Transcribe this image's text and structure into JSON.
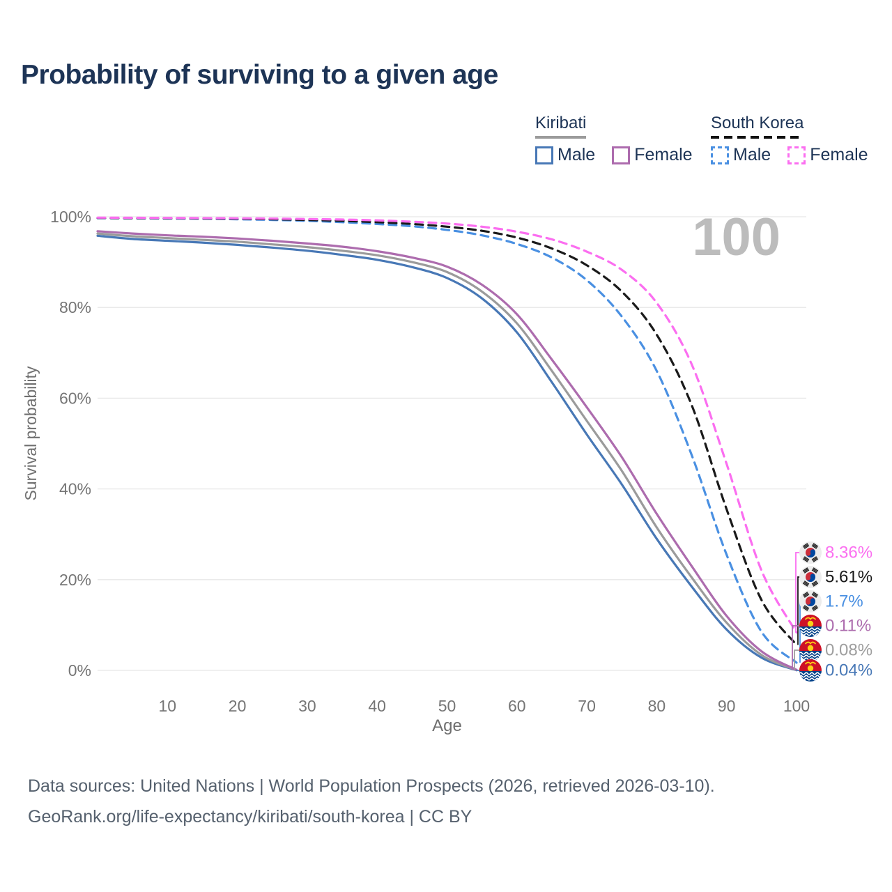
{
  "page": {
    "title": "Probability of surviving to a given age",
    "watermark": "100"
  },
  "legend": {
    "groups": [
      {
        "id": "kiribati",
        "title": "Kiribati",
        "line_style": "solid",
        "line_color": "#9b9b9b",
        "items": [
          {
            "id": "kiribati-male",
            "label": "Male",
            "color": "#4878b6",
            "dashed": false
          },
          {
            "id": "kiribati-female",
            "label": "Female",
            "color": "#ad6cae",
            "dashed": false
          }
        ]
      },
      {
        "id": "south-korea",
        "title": "South Korea",
        "line_style": "dashed",
        "line_color": "#1a1a1a",
        "items": [
          {
            "id": "south-korea-male",
            "label": "Male",
            "color": "#4a90e2",
            "dashed": true
          },
          {
            "id": "south-korea-female",
            "label": "Female",
            "color": "#fb6ef0",
            "dashed": true
          }
        ]
      }
    ]
  },
  "chart_data": {
    "type": "line",
    "title": "Probability of surviving to a given age",
    "xlabel": "Age",
    "ylabel": "Survival probability",
    "xlim": [
      0,
      100
    ],
    "ylim": [
      0,
      100
    ],
    "grid": "horizontal",
    "legend_position": "top-right",
    "x_ticks": [
      {
        "value": 10,
        "label": "10"
      },
      {
        "value": 20,
        "label": "20"
      },
      {
        "value": 30,
        "label": "30"
      },
      {
        "value": 40,
        "label": "40"
      },
      {
        "value": 50,
        "label": "50"
      },
      {
        "value": 60,
        "label": "60"
      },
      {
        "value": 70,
        "label": "70"
      },
      {
        "value": 80,
        "label": "80"
      },
      {
        "value": 90,
        "label": "90"
      },
      {
        "value": 100,
        "label": "100"
      }
    ],
    "y_ticks": [
      {
        "value": 0,
        "label": "0%"
      },
      {
        "value": 20,
        "label": "20%"
      },
      {
        "value": 40,
        "label": "40%"
      },
      {
        "value": 60,
        "label": "60%"
      },
      {
        "value": 80,
        "label": "80%"
      },
      {
        "value": 100,
        "label": "100%"
      }
    ],
    "x": [
      0,
      5,
      10,
      15,
      20,
      25,
      30,
      35,
      40,
      45,
      50,
      55,
      60,
      65,
      70,
      75,
      80,
      85,
      90,
      95,
      100
    ],
    "series": [
      {
        "id": "kiribati-male",
        "name": "Kiribati Male",
        "country": "Kiribati",
        "sex": "male",
        "style": "solid",
        "color": "#4878b6",
        "flag": "kiribati",
        "end_label": "0.04%",
        "values": [
          95.8,
          95.1,
          94.7,
          94.3,
          93.8,
          93.2,
          92.5,
          91.6,
          90.5,
          88.9,
          86.5,
          82.0,
          74.5,
          63.5,
          52.0,
          41.0,
          29.0,
          18.5,
          9.0,
          2.8,
          0.04
        ]
      },
      {
        "id": "kiribati-total",
        "name": "Kiribati (both sexes)",
        "country": "Kiribati",
        "sex": "both",
        "style": "solid",
        "color": "#9b9b9b",
        "flag": "kiribati",
        "end_label": "0.08%",
        "values": [
          96.3,
          95.7,
          95.3,
          94.9,
          94.5,
          93.9,
          93.3,
          92.5,
          91.5,
          90.0,
          87.8,
          83.5,
          76.5,
          66.0,
          55.0,
          44.0,
          31.5,
          20.5,
          10.5,
          3.4,
          0.08
        ]
      },
      {
        "id": "kiribati-female",
        "name": "Kiribati Female",
        "country": "Kiribati",
        "sex": "female",
        "style": "solid",
        "color": "#ad6cae",
        "flag": "kiribati",
        "end_label": "0.11%",
        "values": [
          96.8,
          96.3,
          95.9,
          95.6,
          95.2,
          94.7,
          94.1,
          93.4,
          92.4,
          91.0,
          89.0,
          85.0,
          78.5,
          68.5,
          58.0,
          47.0,
          34.5,
          23.0,
          12.0,
          4.2,
          0.11
        ]
      },
      {
        "id": "south-korea-male",
        "name": "South Korea Male",
        "country": "South Korea",
        "sex": "male",
        "style": "dashed",
        "color": "#4a90e2",
        "flag": "south-korea",
        "end_label": "1.7%",
        "values": [
          99.7,
          99.65,
          99.6,
          99.55,
          99.45,
          99.3,
          99.1,
          98.8,
          98.4,
          97.9,
          97.1,
          95.9,
          94.0,
          91.0,
          86.0,
          78.0,
          66.0,
          47.5,
          25.5,
          8.5,
          1.7
        ]
      },
      {
        "id": "south-korea-total",
        "name": "South Korea (both sexes)",
        "country": "South Korea",
        "sex": "both",
        "style": "dashed",
        "color": "#1a1a1a",
        "flag": "south-korea",
        "end_label": "5.61%",
        "values": [
          99.75,
          99.7,
          99.67,
          99.62,
          99.55,
          99.45,
          99.3,
          99.1,
          98.8,
          98.4,
          97.8,
          96.9,
          95.4,
          93.0,
          89.3,
          83.5,
          74.0,
          58.5,
          35.5,
          15.5,
          5.61
        ]
      },
      {
        "id": "south-korea-female",
        "name": "South Korea Female",
        "country": "South Korea",
        "sex": "female",
        "style": "dashed",
        "color": "#fb6ef0",
        "flag": "south-korea",
        "end_label": "8.36%",
        "values": [
          99.8,
          99.77,
          99.74,
          99.7,
          99.65,
          99.58,
          99.5,
          99.38,
          99.2,
          98.9,
          98.5,
          97.8,
          96.7,
          95.0,
          92.3,
          88.3,
          81.0,
          67.5,
          45.5,
          22.0,
          8.36
        ]
      }
    ],
    "end_labels": [
      {
        "series": "south-korea-female",
        "text": "8.36%",
        "color": "#fb6ef0",
        "flag": "south-korea"
      },
      {
        "series": "south-korea-total",
        "text": "5.61%",
        "color": "#1a1a1a",
        "flag": "south-korea"
      },
      {
        "series": "south-korea-male",
        "text": "1.7%",
        "color": "#4a90e2",
        "flag": "south-korea"
      },
      {
        "series": "kiribati-female",
        "text": "0.11%",
        "color": "#ad6cae",
        "flag": "kiribati"
      },
      {
        "series": "kiribati-total",
        "text": "0.08%",
        "color": "#9e9e9e",
        "flag": "kiribati"
      },
      {
        "series": "kiribati-male",
        "text": "0.04%",
        "color": "#4878b6",
        "flag": "kiribati"
      }
    ],
    "colors": {
      "grid": "#e7e7e7",
      "tick_text": "#757575",
      "axis_title": "#6f6f6f",
      "watermark": "#bcbcbc"
    }
  },
  "footer": {
    "line1": "Data sources: United Nations | World Population Prospects (2026, retrieved 2026-03-10).",
    "line2": "GeoRank.org/life-expectancy/kiribati/south-korea | CC BY"
  }
}
